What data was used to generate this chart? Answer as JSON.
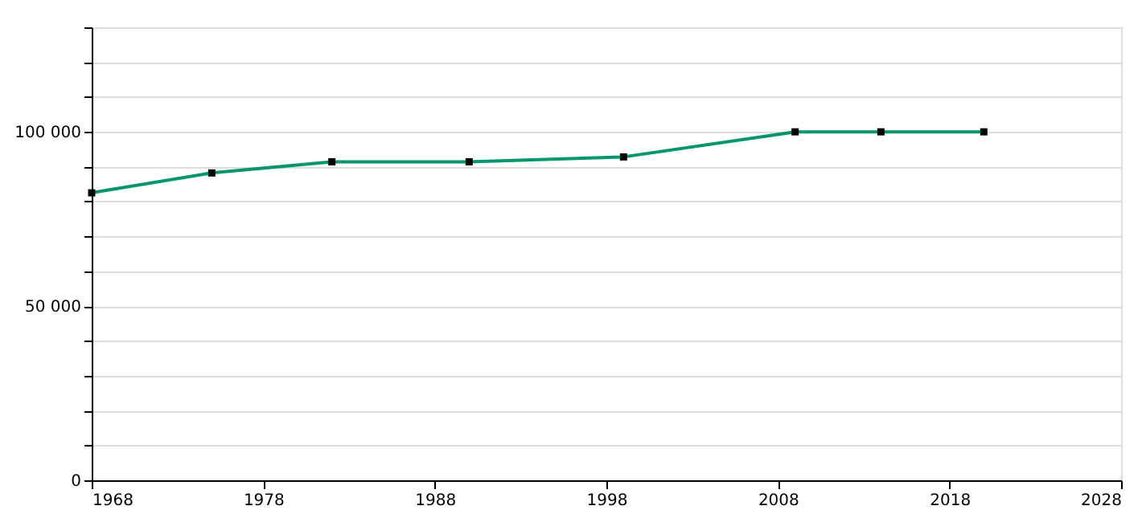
{
  "chart_data": {
    "type": "line",
    "x": [
      1968,
      1975,
      1982,
      1990,
      1999,
      2009,
      2014,
      2020
    ],
    "series": [
      {
        "color": "#00966b",
        "values": [
          82500,
          88200,
          91400,
          91400,
          92800,
          100000,
          100000,
          100000
        ]
      }
    ],
    "xlim": [
      1968,
      2028
    ],
    "xticks": [
      1968,
      1978,
      1988,
      1998,
      2008,
      2018,
      2028
    ],
    "ylim": [
      0,
      130000
    ],
    "yticks": [
      0,
      {
        "value": 10000,
        "label": null
      },
      {
        "value": 20000,
        "label": null
      },
      {
        "value": 30000,
        "label": null
      },
      {
        "value": 40000,
        "label": null
      },
      {
        "value": 50000,
        "label": "50 000"
      },
      {
        "value": 60000,
        "label": null
      },
      {
        "value": 70000,
        "label": null
      },
      {
        "value": 80000,
        "label": null
      },
      {
        "value": 90000,
        "label": null
      },
      {
        "value": 100000,
        "label": "100 000"
      },
      {
        "value": 110000,
        "label": null
      },
      {
        "value": 120000,
        "label": null
      },
      {
        "value": 130000,
        "label": null
      }
    ],
    "grid": "y",
    "marker": "square",
    "line_style": "solid"
  }
}
